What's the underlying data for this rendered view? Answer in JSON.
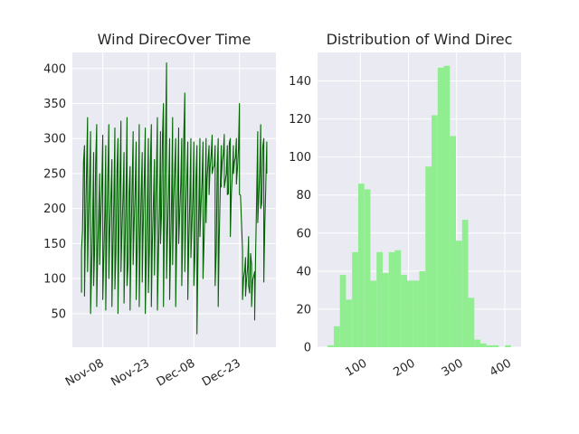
{
  "chart_data": [
    {
      "type": "line",
      "title": "Wind DirecOver Time",
      "xlabel": "",
      "ylabel": "",
      "x_tick_labels": [
        "Nov-08",
        "Nov-23",
        "Dec-08",
        "Dec-23"
      ],
      "x_ticks": [
        "2017-11-08",
        "2017-11-23",
        "2017-12-08",
        "2017-12-23"
      ],
      "xlim": [
        "2017-10-29",
        "2018-01-04"
      ],
      "y_ticks": [
        50,
        100,
        150,
        200,
        250,
        300,
        350,
        400
      ],
      "ylim": [
        2,
        423
      ],
      "grid": true,
      "series": [
        {
          "color": "#006400",
          "points": [
            [
              "2017-11-01",
              80
            ],
            [
              "2017-11-01",
              140
            ],
            [
              "2017-11-02",
              290
            ],
            [
              "2017-11-02",
              75
            ],
            [
              "2017-11-03",
              330
            ],
            [
              "2017-11-03",
              110
            ],
            [
              "2017-11-04",
              310
            ],
            [
              "2017-11-04",
              50
            ],
            [
              "2017-11-05",
              280
            ],
            [
              "2017-11-05",
              90
            ],
            [
              "2017-11-06",
              320
            ],
            [
              "2017-11-06",
              60
            ],
            [
              "2017-11-07",
              250
            ],
            [
              "2017-11-07",
              120
            ],
            [
              "2017-11-08",
              305
            ],
            [
              "2017-11-08",
              70
            ],
            [
              "2017-11-09",
              290
            ],
            [
              "2017-11-09",
              55
            ],
            [
              "2017-11-10",
              320
            ],
            [
              "2017-11-10",
              100
            ],
            [
              "2017-11-11",
              270
            ],
            [
              "2017-11-11",
              60
            ],
            [
              "2017-11-12",
              315
            ],
            [
              "2017-11-12",
              85
            ],
            [
              "2017-11-13",
              300
            ],
            [
              "2017-11-13",
              50
            ],
            [
              "2017-11-14",
              325
            ],
            [
              "2017-11-14",
              110
            ],
            [
              "2017-11-15",
              280
            ],
            [
              "2017-11-15",
              65
            ],
            [
              "2017-11-16",
              330
            ],
            [
              "2017-11-16",
              90
            ],
            [
              "2017-11-17",
              260
            ],
            [
              "2017-11-17",
              55
            ],
            [
              "2017-11-18",
              310
            ],
            [
              "2017-11-18",
              120
            ],
            [
              "2017-11-19",
              295
            ],
            [
              "2017-11-19",
              70
            ],
            [
              "2017-11-20",
              320
            ],
            [
              "2017-11-20",
              60
            ],
            [
              "2017-11-21",
              280
            ],
            [
              "2017-11-21",
              95
            ],
            [
              "2017-11-22",
              315
            ],
            [
              "2017-11-22",
              50
            ],
            [
              "2017-11-23",
              300
            ],
            [
              "2017-11-23",
              80
            ],
            [
              "2017-11-24",
              320
            ],
            [
              "2017-11-24",
              60
            ],
            [
              "2017-11-25",
              270
            ],
            [
              "2017-11-25",
              105
            ],
            [
              "2017-11-26",
              330
            ],
            [
              "2017-11-26",
              55
            ],
            [
              "2017-11-27",
              310
            ],
            [
              "2017-11-27",
              150
            ],
            [
              "2017-11-28",
              350
            ],
            [
              "2017-11-28",
              60
            ],
            [
              "2017-11-29",
              408
            ],
            [
              "2017-11-29",
              100
            ],
            [
              "2017-11-30",
              300
            ],
            [
              "2017-11-30",
              70
            ],
            [
              "2017-12-01",
              330
            ],
            [
              "2017-12-01",
              120
            ],
            [
              "2017-12-02",
              300
            ],
            [
              "2017-12-02",
              60
            ],
            [
              "2017-12-03",
              315
            ],
            [
              "2017-12-03",
              150
            ],
            [
              "2017-12-04",
              300
            ],
            [
              "2017-12-04",
              90
            ],
            [
              "2017-12-05",
              365
            ],
            [
              "2017-12-05",
              110
            ],
            [
              "2017-12-06",
              295
            ],
            [
              "2017-12-06",
              70
            ],
            [
              "2017-12-07",
              300
            ],
            [
              "2017-12-07",
              130
            ],
            [
              "2017-12-08",
              295
            ],
            [
              "2017-12-08",
              90
            ],
            [
              "2017-12-09",
              290
            ],
            [
              "2017-12-09",
              21
            ],
            [
              "2017-12-10",
              300
            ],
            [
              "2017-12-10",
              160
            ],
            [
              "2017-12-11",
              295
            ],
            [
              "2017-12-11",
              100
            ],
            [
              "2017-12-12",
              300
            ],
            [
              "2017-12-12",
              180
            ],
            [
              "2017-12-13",
              290
            ],
            [
              "2017-12-13",
              220
            ],
            [
              "2017-12-14",
              305
            ],
            [
              "2017-12-14",
              250
            ],
            [
              "2017-12-15",
              290
            ],
            [
              "2017-12-15",
              90
            ],
            [
              "2017-12-16",
              300
            ],
            [
              "2017-12-16",
              60
            ],
            [
              "2017-12-17",
              290
            ],
            [
              "2017-12-17",
              240
            ],
            [
              "2017-12-18",
              305
            ],
            [
              "2017-12-18",
              230
            ],
            [
              "2017-12-19",
              290
            ],
            [
              "2017-12-19",
              220
            ],
            [
              "2017-12-20",
              300
            ],
            [
              "2017-12-20",
              160
            ],
            [
              "2017-12-21",
              290
            ],
            [
              "2017-12-21",
              250
            ],
            [
              "2017-12-22",
              300
            ],
            [
              "2017-12-22",
              235
            ],
            [
              "2017-12-23",
              350
            ],
            [
              "2017-12-23",
              220
            ],
            [
              "2017-12-24",
              140
            ],
            [
              "2017-12-24",
              70
            ],
            [
              "2017-12-25",
              130
            ],
            [
              "2017-12-25",
              75
            ],
            [
              "2017-12-26",
              160
            ],
            [
              "2017-12-26",
              90
            ],
            [
              "2017-12-27",
              120
            ],
            [
              "2017-12-27",
              60
            ],
            [
              "2017-12-28",
              110
            ],
            [
              "2017-12-28",
              45
            ],
            [
              "2017-12-29",
              310
            ],
            [
              "2017-12-29",
              180
            ],
            [
              "2017-12-30",
              320
            ],
            [
              "2017-12-30",
              200
            ],
            [
              "2017-12-31",
              300
            ],
            [
              "2017-12-31",
              95
            ],
            [
              "2018-01-01",
              295
            ],
            [
              "2018-01-01",
              250
            ]
          ]
        }
      ]
    },
    {
      "type": "histogram",
      "title": "Distribution of Wind Direc",
      "xlabel": "",
      "ylabel": "",
      "x_ticks": [
        100,
        200,
        300,
        400
      ],
      "xlim": [
        11,
        434
      ],
      "y_ticks": [
        0,
        20,
        40,
        60,
        80,
        100,
        120,
        140
      ],
      "ylim": [
        0,
        155
      ],
      "grid": true,
      "color": "#90ee90",
      "bin_start": 32,
      "bin_width": 12.7,
      "counts": [
        1,
        11,
        38,
        25,
        50,
        86,
        83,
        35,
        50,
        39,
        50,
        51,
        38,
        35,
        35,
        40,
        95,
        122,
        147,
        148,
        111,
        56,
        67,
        26,
        4,
        2,
        1,
        1,
        0,
        1
      ]
    }
  ]
}
